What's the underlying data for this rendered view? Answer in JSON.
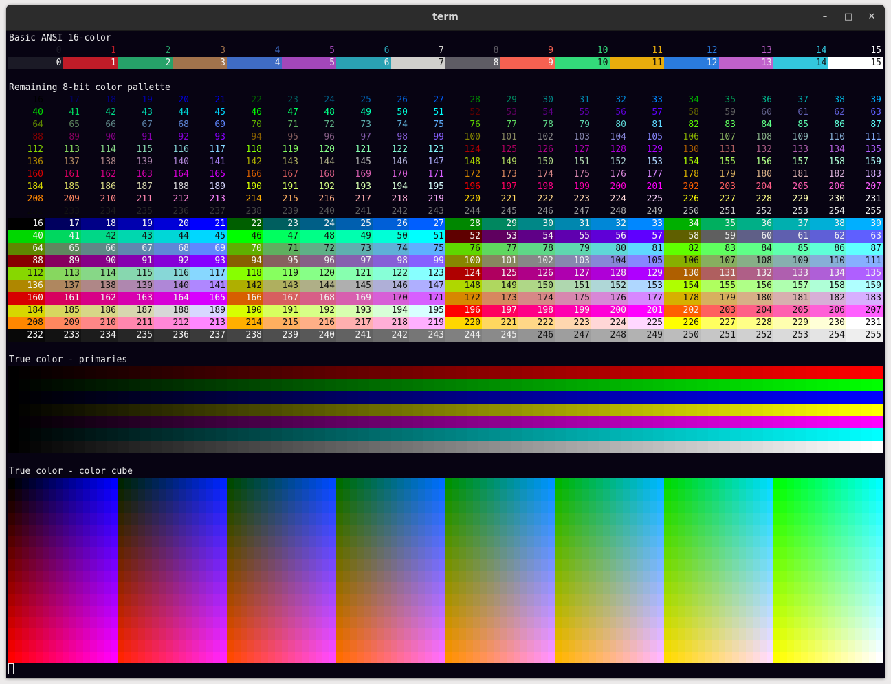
{
  "window": {
    "title": "term",
    "controls": {
      "minimize": "–",
      "maximize": "□",
      "close": "✕"
    }
  },
  "sections": {
    "basic": "Basic ANSI 16-color",
    "remaining": "Remaining 8-bit color pallette",
    "primaries": "True color - primaries",
    "cube": "True color - color cube"
  },
  "theme": {
    "background": "#070312",
    "foreground": "#e8e8e8",
    "titlebar": "#2c2c2c"
  },
  "ansi16_palette": [
    "#1b1a26",
    "#c01c28",
    "#26a269",
    "#a2734c",
    "#3f6cc5",
    "#a347ba",
    "#2aa1b3",
    "#d0cfcc",
    "#5e5c64",
    "#f66151",
    "#33da7a",
    "#e9ad0c",
    "#2a7bde",
    "#c061cb",
    "#33c7de",
    "#ffffff"
  ],
  "primaries": [
    {
      "r": 1,
      "g": 0,
      "b": 0
    },
    {
      "r": 0,
      "g": 1,
      "b": 0
    },
    {
      "r": 0,
      "g": 0,
      "b": 1
    },
    {
      "r": 1,
      "g": 1,
      "b": 0
    },
    {
      "r": 1,
      "g": 0,
      "b": 1
    },
    {
      "r": 0,
      "g": 1,
      "b": 1
    },
    {
      "r": 1,
      "g": 1,
      "b": 1
    }
  ],
  "color_cube": {
    "blocks": 8,
    "rows": 16,
    "columns": 16
  }
}
